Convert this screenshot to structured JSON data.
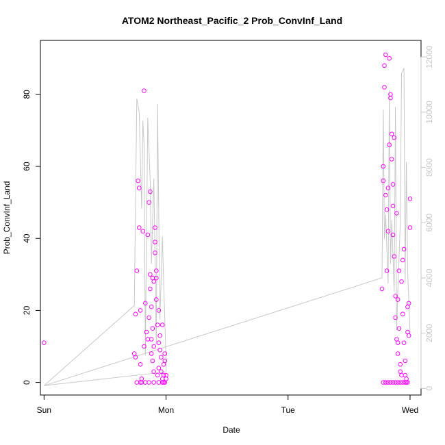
{
  "chart_data": {
    "type": "scatter",
    "title": "ATOM2 Northeast_Pacific_2 Prob_ConvInf_Land",
    "xlabel": "Date",
    "ylabel": "Prob_ConvInf_Land",
    "x_ticks": [
      "Sun",
      "Mon",
      "Tue",
      "Wed"
    ],
    "y_ticks": [
      "0",
      "20",
      "40",
      "60",
      "80"
    ],
    "y2_ticks": [
      "0",
      "2000",
      "4000",
      "6000",
      "8000",
      "10000",
      "12000"
    ],
    "xlim": [
      -0.03,
      3.09
    ],
    "ylim": [
      -3.5,
      95
    ],
    "y2lim": [
      -240,
      12600
    ],
    "grid": false,
    "colors": {
      "points": "#ff00ff",
      "line": "#c8c8c8",
      "frame": "#000000",
      "right_axis": "#c8c8c8"
    },
    "series": [
      {
        "type": "points",
        "axis": "left",
        "x": [
          0.0,
          0.74,
          0.75,
          0.75,
          0.76,
          0.77,
          0.78,
          0.78,
          0.79,
          0.79,
          0.8,
          0.8,
          0.81,
          0.82,
          0.82,
          0.83,
          0.84,
          0.85,
          0.85,
          0.86,
          0.86,
          0.87,
          0.87,
          0.87,
          0.88,
          0.88,
          0.88,
          0.89,
          0.89,
          0.89,
          0.9,
          0.9,
          0.9,
          0.91,
          0.91,
          0.91,
          0.92,
          0.92,
          0.92,
          0.93,
          0.93,
          0.94,
          0.94,
          0.94,
          0.95,
          0.95,
          0.96,
          0.96,
          0.97,
          0.97,
          0.98,
          0.98,
          0.98,
          0.99,
          0.99,
          0.99,
          1.0,
          1.0,
          0.76,
          0.79,
          0.83,
          0.86,
          0.9,
          0.94,
          0.97,
          2.77,
          2.78,
          2.78,
          2.79,
          2.79,
          2.8,
          2.8,
          2.81,
          2.81,
          2.82,
          2.82,
          2.83,
          2.83,
          2.84,
          2.84,
          2.85,
          2.85,
          2.86,
          2.86,
          2.86,
          2.87,
          2.87,
          2.88,
          2.88,
          2.89,
          2.89,
          2.9,
          2.9,
          2.9,
          2.91,
          2.91,
          2.92,
          2.92,
          2.93,
          2.93,
          2.94,
          2.94,
          2.95,
          2.95,
          2.96,
          2.96,
          2.97,
          2.97,
          2.98,
          2.98,
          2.99,
          2.99,
          3.0,
          3.0,
          2.78,
          2.8,
          2.82,
          2.84,
          2.86,
          2.88,
          2.9,
          2.92,
          2.94,
          2.96,
          2.98
        ],
        "y": [
          11,
          8,
          19,
          7,
          31,
          56,
          54,
          43,
          20,
          5,
          0,
          1,
          42,
          81,
          10,
          22,
          14,
          12,
          41,
          50,
          18,
          26,
          30,
          53,
          21,
          12,
          8,
          15,
          29,
          6,
          10,
          3,
          28,
          39,
          43,
          36,
          31,
          29,
          23,
          16,
          2,
          20,
          11,
          4,
          9,
          13,
          7,
          3,
          1,
          16,
          0,
          5,
          2,
          8,
          6,
          0,
          2,
          1,
          0,
          0,
          0,
          0,
          0,
          0,
          0,
          26,
          56,
          60,
          82,
          88,
          91,
          52,
          48,
          31,
          42,
          54,
          66,
          90,
          79,
          80,
          69,
          62,
          55,
          49,
          41,
          68,
          35,
          24,
          18,
          12,
          47,
          11,
          23,
          8,
          15,
          31,
          5,
          3,
          28,
          2,
          19,
          34,
          37,
          11,
          6,
          2,
          0,
          1,
          21,
          14,
          13,
          22,
          43,
          51,
          0,
          0,
          0,
          0,
          0,
          0,
          0,
          0,
          0,
          0,
          0
        ]
      },
      {
        "type": "line",
        "axis": "right",
        "x": [
          0.0,
          0.74,
          0.76,
          0.78,
          0.8,
          0.81,
          0.82,
          0.83,
          0.85,
          0.87,
          0.88,
          0.9,
          0.92,
          0.93,
          0.95,
          0.97,
          0.98,
          1.0,
          1.0,
          0.0,
          2.77,
          2.78,
          2.79,
          2.8,
          2.82,
          2.83,
          2.84,
          2.85,
          2.87,
          2.88,
          2.89,
          2.9,
          2.92,
          2.93,
          2.95,
          2.96,
          2.97,
          2.98,
          3.0
        ],
        "y": [
          100,
          3000,
          10500,
          10000,
          6500,
          9700,
          8800,
          1200,
          9800,
          7500,
          4500,
          7600,
          1600,
          10300,
          2500,
          5500,
          3900,
          1000,
          600,
          100,
          4000,
          10100,
          5400,
          6300,
          3800,
          10800,
          4500,
          6100,
          3500,
          10200,
          2100,
          3500,
          6000,
          11400,
          11600,
          3800,
          8200,
          4300,
          2000
        ]
      }
    ]
  }
}
